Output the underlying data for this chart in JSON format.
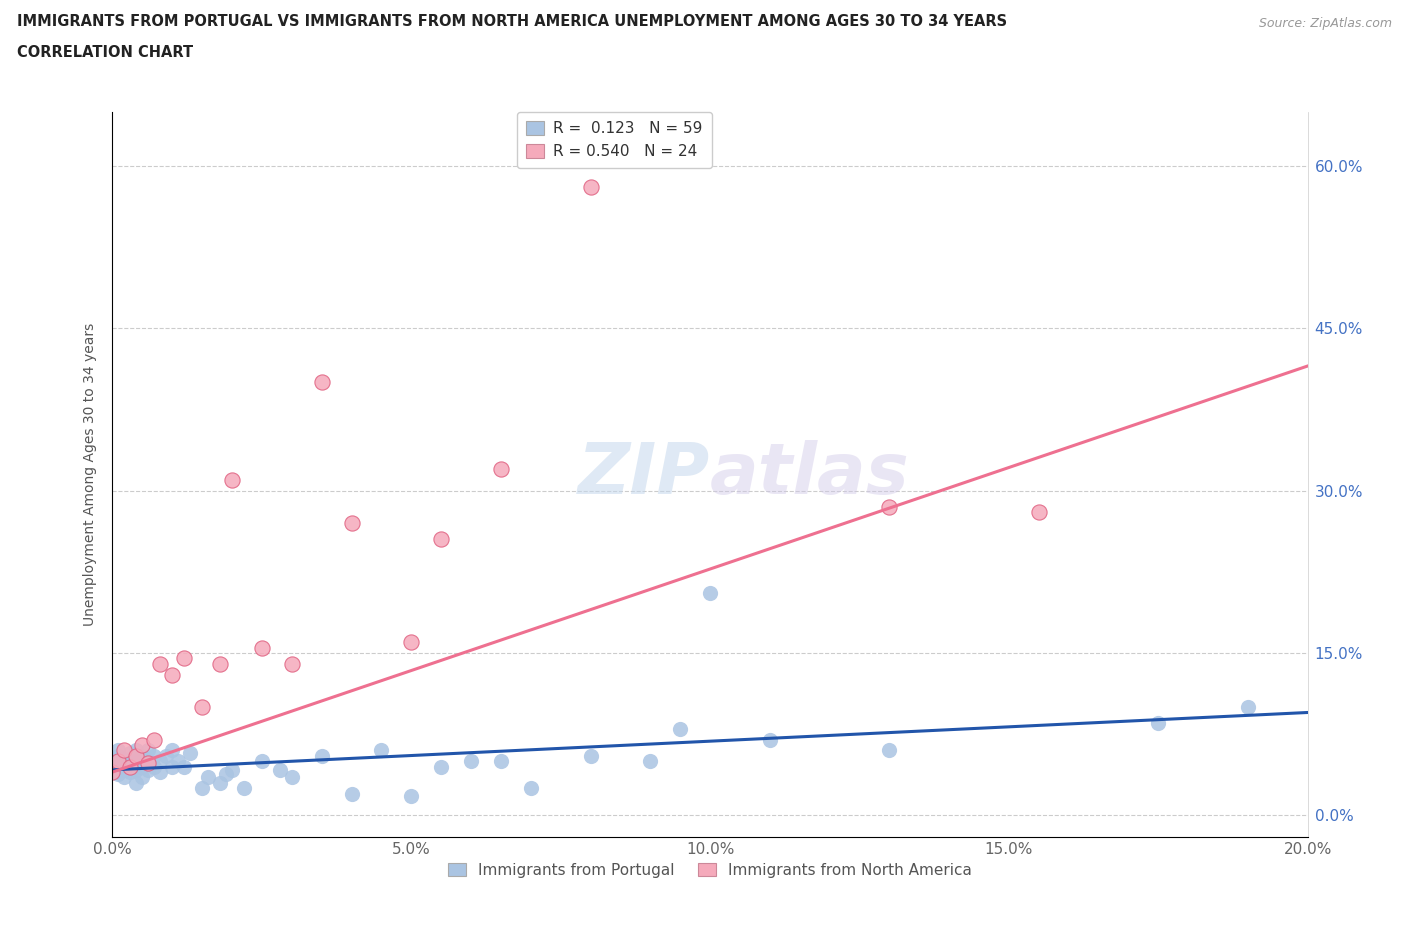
{
  "title_line1": "IMMIGRANTS FROM PORTUGAL VS IMMIGRANTS FROM NORTH AMERICA UNEMPLOYMENT AMONG AGES 30 TO 34 YEARS",
  "title_line2": "CORRELATION CHART",
  "source_text": "Source: ZipAtlas.com",
  "ylabel": "Unemployment Among Ages 30 to 34 years",
  "xlim": [
    0.0,
    0.2
  ],
  "ylim": [
    -0.02,
    0.65
  ],
  "xticks": [
    0.0,
    0.05,
    0.1,
    0.15,
    0.2
  ],
  "xtick_labels": [
    "0.0%",
    "5.0%",
    "10.0%",
    "15.0%",
    "20.0%"
  ],
  "ytick_labels": [
    "0.0%",
    "15.0%",
    "30.0%",
    "45.0%",
    "60.0%"
  ],
  "yticks": [
    0.0,
    0.15,
    0.3,
    0.45,
    0.6
  ],
  "color_portugal": "#aac4e2",
  "color_north_america": "#f5aabb",
  "color_line_portugal": "#2255aa",
  "color_line_north_america": "#ee7090",
  "R_portugal": 0.123,
  "N_portugal": 59,
  "R_north_america": 0.54,
  "N_north_america": 24,
  "watermark": "ZIPatlas",
  "pt_x": [
    0.0,
    0.0,
    0.0,
    0.001,
    0.001,
    0.001,
    0.001,
    0.002,
    0.002,
    0.002,
    0.003,
    0.003,
    0.003,
    0.004,
    0.004,
    0.004,
    0.004,
    0.005,
    0.005,
    0.005,
    0.005,
    0.006,
    0.006,
    0.006,
    0.007,
    0.007,
    0.008,
    0.008,
    0.009,
    0.01,
    0.01,
    0.011,
    0.012,
    0.013,
    0.015,
    0.016,
    0.018,
    0.019,
    0.02,
    0.022,
    0.025,
    0.028,
    0.03,
    0.035,
    0.04,
    0.045,
    0.05,
    0.055,
    0.06,
    0.065,
    0.07,
    0.08,
    0.09,
    0.095,
    0.1,
    0.11,
    0.13,
    0.175,
    0.19
  ],
  "pt_y": [
    0.045,
    0.05,
    0.04,
    0.055,
    0.045,
    0.06,
    0.038,
    0.042,
    0.052,
    0.035,
    0.048,
    0.058,
    0.04,
    0.05,
    0.06,
    0.042,
    0.03,
    0.048,
    0.055,
    0.045,
    0.035,
    0.05,
    0.06,
    0.042,
    0.045,
    0.055,
    0.05,
    0.04,
    0.055,
    0.06,
    0.045,
    0.05,
    0.045,
    0.058,
    0.025,
    0.035,
    0.03,
    0.038,
    0.042,
    0.025,
    0.05,
    0.042,
    0.035,
    0.055,
    0.02,
    0.06,
    0.018,
    0.045,
    0.05,
    0.05,
    0.025,
    0.055,
    0.05,
    0.08,
    0.205,
    0.07,
    0.06,
    0.085,
    0.1
  ],
  "na_x": [
    0.0,
    0.001,
    0.002,
    0.003,
    0.004,
    0.005,
    0.006,
    0.007,
    0.008,
    0.01,
    0.012,
    0.015,
    0.018,
    0.02,
    0.025,
    0.03,
    0.035,
    0.04,
    0.05,
    0.055,
    0.065,
    0.08,
    0.13,
    0.155
  ],
  "na_y": [
    0.04,
    0.05,
    0.06,
    0.045,
    0.055,
    0.065,
    0.048,
    0.07,
    0.14,
    0.13,
    0.145,
    0.1,
    0.14,
    0.31,
    0.155,
    0.14,
    0.4,
    0.27,
    0.16,
    0.255,
    0.32,
    0.58,
    0.285,
    0.28
  ],
  "pt_line_x0": 0.0,
  "pt_line_y0": 0.042,
  "pt_line_x1": 0.2,
  "pt_line_y1": 0.095,
  "na_line_x0": 0.0,
  "na_line_y0": 0.04,
  "na_line_x1": 0.2,
  "na_line_y1": 0.415
}
